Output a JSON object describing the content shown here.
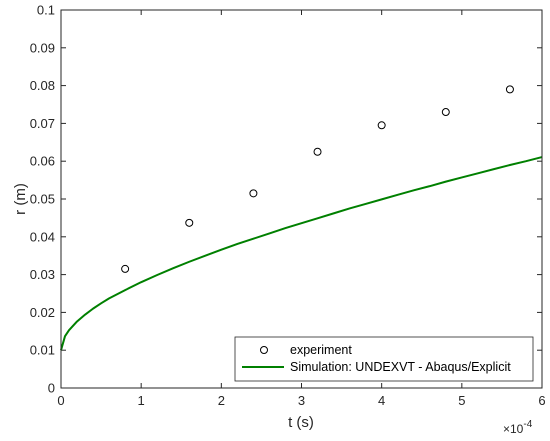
{
  "chart_data": {
    "type": "line",
    "xlabel": "t (s)",
    "ylabel": "r (m)",
    "x_exponent_label": "×10",
    "x_exponent_power": "-4",
    "xlim": [
      0,
      6
    ],
    "ylim": [
      0,
      0.1
    ],
    "x_ticks": [
      "0",
      "1",
      "2",
      "3",
      "4",
      "5",
      "6"
    ],
    "y_ticks": [
      "0",
      "0.01",
      "0.02",
      "0.03",
      "0.04",
      "0.05",
      "0.06",
      "0.07",
      "0.08",
      "0.09",
      "0.1"
    ],
    "grid": false,
    "legend_position": "bottom-right",
    "series": [
      {
        "name": "experiment",
        "kind": "scatter",
        "marker": "circle",
        "color": "#000000",
        "x": [
          0.8,
          1.6,
          2.4,
          3.2,
          4.0,
          4.8,
          5.6
        ],
        "y": [
          0.0315,
          0.0437,
          0.0515,
          0.0625,
          0.0695,
          0.073,
          0.079
        ]
      },
      {
        "name": "Simulation: UNDEXVT - Abaqus/Explicit",
        "kind": "line",
        "color": "#008000",
        "x": [
          0,
          0.05,
          0.1,
          0.2,
          0.3,
          0.4,
          0.5,
          0.6,
          0.8,
          1.0,
          1.2,
          1.4,
          1.6,
          1.8,
          2.0,
          2.2,
          2.4,
          2.6,
          2.8,
          3.0,
          3.2,
          3.4,
          3.6,
          3.8,
          4.0,
          4.2,
          4.4,
          4.6,
          4.8,
          5.0,
          5.2,
          5.4,
          5.6,
          5.8,
          6.0
        ],
        "y": [
          0.01,
          0.0137,
          0.0153,
          0.0176,
          0.0194,
          0.021,
          0.0224,
          0.0237,
          0.0259,
          0.028,
          0.0299,
          0.0317,
          0.0334,
          0.035,
          0.0366,
          0.0381,
          0.0395,
          0.0409,
          0.0423,
          0.0436,
          0.0449,
          0.0462,
          0.0475,
          0.0487,
          0.0499,
          0.0511,
          0.0523,
          0.0534,
          0.0546,
          0.0557,
          0.0568,
          0.0579,
          0.059,
          0.06,
          0.0611
        ]
      }
    ]
  }
}
